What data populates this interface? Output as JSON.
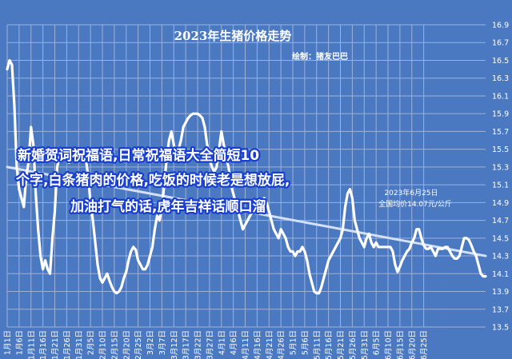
{
  "chart_data": {
    "type": "line",
    "title": "2023年生猪价格走势",
    "subtitle": "绘制：猪友巴巴",
    "x_tick_labels": [
      "1月1日",
      "1月6日",
      "1月11日",
      "1月16日",
      "1月21日",
      "1月26日",
      "1月31日",
      "2月5日",
      "2月10日",
      "2月15日",
      "2月20日",
      "2月25日",
      "3月2日",
      "3月7日",
      "3月12日",
      "3月17日",
      "3月22日",
      "3月27日",
      "4月1日",
      "4月6日",
      "4月11日",
      "4月16日",
      "4月21日",
      "4月26日",
      "5月1日",
      "5月6日",
      "5月11日",
      "5月16日",
      "5月21日",
      "5月26日",
      "5月31日",
      "6月5日",
      "6月10日",
      "6月15日",
      "6月20日",
      "6月25日"
    ],
    "y_tick_labels": [
      "13.5",
      "13.7",
      "13.9",
      "14.1",
      "14.3",
      "14.5",
      "14.7",
      "14.9",
      "15.1",
      "15.3",
      "15.5",
      "15.7",
      "15.9",
      "16.1",
      "16.3",
      "16.5",
      "16.7",
      "16.9"
    ],
    "ylim": [
      13.5,
      16.9
    ],
    "y_axis_side": "right",
    "grid": true,
    "x_start": "2023-01-01",
    "series": [
      {
        "values": [
          16.4,
          16.5,
          16.45,
          16.0,
          15.3,
          15.05,
          14.95,
          14.85,
          15.2,
          15.35,
          15.75,
          15.55,
          15.0,
          14.6,
          14.3,
          14.15,
          14.25,
          14.15,
          14.1,
          14.5,
          14.8,
          15.3,
          15.42,
          15.4,
          15.4,
          15.4,
          15.35,
          15.4,
          15.4,
          15.45,
          15.45,
          15.47,
          15.47,
          15.4,
          15.2,
          14.9,
          14.7,
          14.45,
          14.2,
          14.05,
          14.0,
          14.05,
          14.1,
          14.02,
          13.95,
          13.9,
          13.88,
          13.9,
          13.95,
          14.05,
          14.12,
          14.25,
          14.35,
          14.4,
          14.37,
          14.25,
          14.2,
          14.15,
          14.15,
          14.2,
          14.3,
          14.4,
          14.6,
          14.75,
          14.7,
          14.85,
          15.1,
          15.4,
          15.6,
          15.7,
          15.55,
          15.4,
          15.5,
          15.6,
          15.75,
          15.8,
          15.85,
          15.88,
          15.9,
          15.9,
          15.9,
          15.88,
          15.85,
          15.75,
          15.55,
          15.4,
          15.3,
          15.25,
          15.3,
          15.5,
          15.7,
          15.55,
          15.4,
          15.3,
          15.1,
          15.0,
          14.9,
          14.8,
          14.7,
          14.6,
          14.65,
          14.7,
          14.75,
          14.8,
          14.85,
          14.9,
          14.85,
          14.9,
          14.95,
          14.9,
          14.8,
          14.7,
          14.6,
          14.55,
          14.5,
          14.6,
          14.55,
          14.5,
          14.4,
          14.35,
          14.35,
          14.3,
          14.35,
          14.35,
          14.4,
          14.35,
          14.25,
          14.1,
          14.0,
          13.9,
          13.88,
          13.88,
          13.95,
          14.05,
          14.15,
          14.25,
          14.3,
          14.35,
          14.4,
          14.45,
          14.5,
          14.6,
          14.85,
          15.0,
          15.05,
          14.95,
          14.7,
          14.6,
          14.5,
          14.45,
          14.4,
          14.5,
          14.55,
          14.45,
          14.4,
          14.45,
          14.4,
          14.4,
          14.4,
          14.4,
          14.4,
          14.4,
          14.35,
          14.2,
          14.12,
          14.18,
          14.25,
          14.3,
          14.35,
          14.38,
          14.45,
          14.5,
          14.6,
          14.6,
          14.5,
          14.42,
          14.38,
          14.38,
          14.4,
          14.35,
          14.3,
          14.38,
          14.38,
          14.38,
          14.4,
          14.4,
          14.35,
          14.3,
          14.27,
          14.27,
          14.3,
          14.4,
          14.5,
          14.5,
          14.48,
          14.42,
          14.35,
          14.3,
          14.2,
          14.1,
          14.07,
          14.07
        ]
      }
    ],
    "trendline": {
      "start": 15.3,
      "end": 14.3
    },
    "annotation_lines": [
      "2023年6月25日",
      "全国均价14.07元/公斤"
    ]
  },
  "overlay_text": [
    "新婚贺词祝福语,日常祝福语大全简短10",
    "个字,白条猪肉的价格,吃饭的时候老是想放屁,",
    "加油打气的话,虎年吉祥话顺口溜"
  ],
  "colors": {
    "background": "#4a79c2",
    "line": "#ffffff",
    "trend": "#d3e0f5",
    "grid": "#9db1d8"
  }
}
